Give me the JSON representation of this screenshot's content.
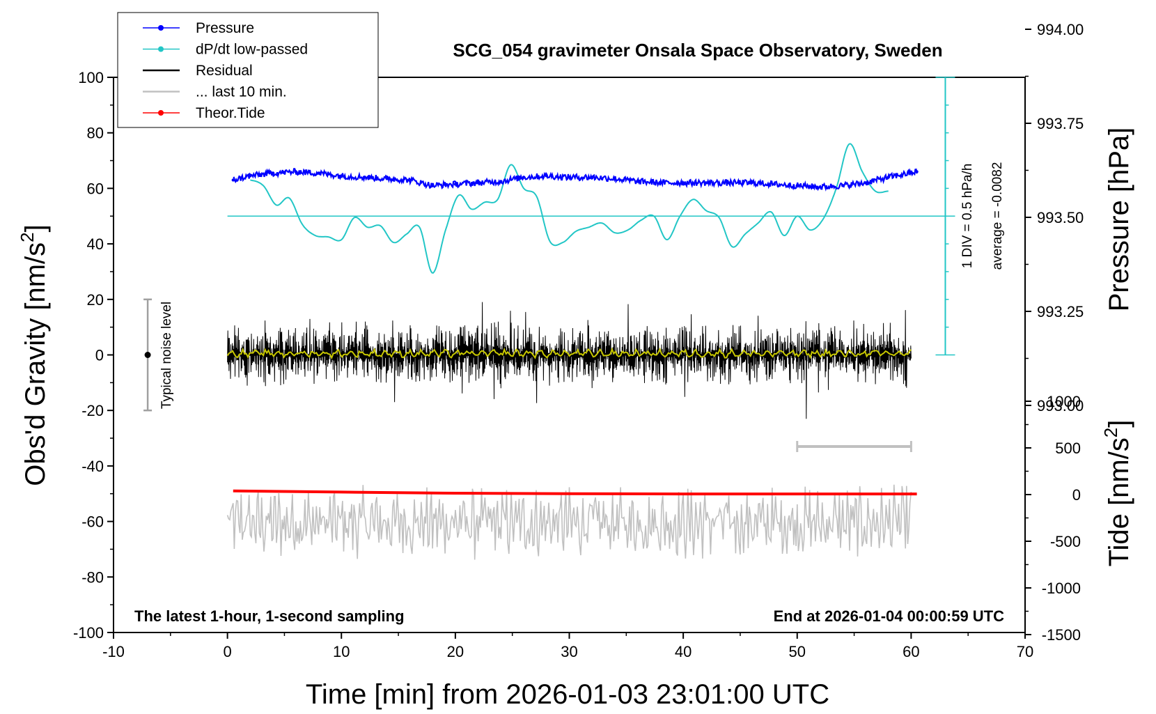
{
  "chart_data": {
    "type": "line",
    "title": "SCG_054 gravimeter Onsala Space Observatory, Sweden",
    "xlabel": "Time [min] from 2026-01-03 23:01:00 UTC",
    "ylabel_left": "Obs'd Gravity [nm/s",
    "ylabel_left_sup": "2",
    "ylabel_left_tail": "]",
    "ylabel_right_pressure": "Pressure [hPa]",
    "ylabel_right_tide": "Tide [nm/s",
    "ylabel_right_tide_sup": "2",
    "ylabel_right_tide_tail": "]",
    "xlim": [
      -10,
      70
    ],
    "ylim_left": [
      -100,
      100
    ],
    "x_ticks": [
      "-10",
      "0",
      "10",
      "20",
      "30",
      "40",
      "50",
      "60",
      "70"
    ],
    "y_ticks_left": [
      "100",
      "80",
      "60",
      "40",
      "20",
      "0",
      "-20",
      "-40",
      "-60",
      "-80",
      "-100"
    ],
    "pressure_axis": {
      "ticks": [
        "994.00",
        "993.75",
        "993.50",
        "993.25",
        "993.00"
      ],
      "values": [
        994.0,
        993.75,
        993.5,
        993.25,
        993.0
      ]
    },
    "tide_axis": {
      "ticks": [
        "1000",
        "500",
        "0",
        "-500",
        "-1000",
        "-1500"
      ],
      "values": [
        1000,
        500,
        0,
        -500,
        -1000,
        -1500
      ]
    },
    "legend": {
      "placement": "top-left",
      "items": [
        {
          "label": "Pressure",
          "color": "#0000ff",
          "marker": true
        },
        {
          "label": "dP/dt low-passed",
          "color": "#22c6c6",
          "marker": true
        },
        {
          "label": "Residual",
          "color": "#000000",
          "marker": false
        },
        {
          "label": "... last 10 min.",
          "color": "#c0c0c0",
          "marker": false
        },
        {
          "label": "Theor.Tide",
          "color": "#ff0000",
          "marker": true
        }
      ]
    },
    "annotations": {
      "noise_level": "Typical noise level",
      "dpdt_scale": "1 DIV = 0.5 hPa/h",
      "dpdt_average": "average = -0.0082",
      "bottom_left": "The latest 1-hour, 1-second sampling",
      "bottom_right": "End at 2026-01-04 00:00:59 UTC"
    },
    "series": [
      {
        "name": "Pressure",
        "color": "#0000ff",
        "x": [
          0.5,
          2,
          4,
          6,
          8,
          10,
          12,
          14,
          16,
          18,
          20,
          22,
          24,
          26,
          28,
          30,
          32,
          34,
          36,
          38,
          40,
          42,
          44,
          46,
          48,
          50,
          52,
          54,
          56,
          58,
          60.5
        ],
        "y": [
          63,
          64.5,
          65.5,
          66,
          65.5,
          64.5,
          64,
          63.5,
          63,
          61,
          61.5,
          62,
          62.5,
          64,
          64.5,
          64,
          64,
          63.5,
          62.5,
          62,
          62,
          62,
          62,
          62,
          61.5,
          61,
          60.5,
          61,
          62,
          64,
          66
        ]
      },
      {
        "name": "dP/dt low-passed",
        "color": "#22c6c6",
        "x": [
          2,
          2.5,
          3.5,
          4.5,
          5.5,
          6.5,
          7.5,
          8.5,
          9.8,
          11,
          12,
          13.5,
          14.7,
          15.8,
          17.2,
          18.5,
          19.8,
          21,
          22,
          23,
          24.5,
          25.8,
          27,
          28.5,
          29.5,
          31,
          32,
          33.5,
          34.5,
          35.5,
          36.5,
          37.5,
          38.5,
          40,
          41,
          42.5,
          43.5,
          44.8,
          46,
          47,
          48,
          48.8,
          50,
          51,
          52,
          53.5,
          54.8,
          56,
          57,
          58
        ],
        "y": [
          63,
          61,
          54,
          56.5,
          47,
          43,
          42.5,
          41.5,
          49.5,
          46,
          46.5,
          40.5,
          43.5,
          46,
          29.5,
          45,
          57.5,
          52.5,
          55,
          56,
          68.5,
          60,
          57,
          41,
          40.5,
          44.5,
          46,
          47.5,
          44,
          45,
          48.5,
          50,
          41.5,
          50,
          56,
          52,
          49.5,
          39,
          43.5,
          47.5,
          51.5,
          43,
          50,
          45,
          49,
          60,
          76,
          66,
          59,
          59
        ]
      },
      {
        "name": "Residual",
        "color": "#000000",
        "x_range": [
          0,
          60
        ],
        "amplitude_envelope": [
          -23,
          22
        ],
        "typical_amplitude": 8
      },
      {
        "name": "... last 10 min.",
        "color": "#c0c0c0",
        "x_range": [
          0,
          60
        ],
        "baseline": -60.5,
        "amplitude_envelope": [
          -79,
          -43
        ]
      },
      {
        "name": "Theor.Tide",
        "color": "#ff0000",
        "x": [
          0.5,
          10,
          20,
          30,
          40,
          50,
          60.5
        ],
        "y": [
          -49,
          -49.4,
          -49.8,
          -50,
          -50.1,
          -50.1,
          -50.1
        ]
      },
      {
        "name": "low-pass residual",
        "color": "#c8c800",
        "x_range": [
          0,
          60
        ],
        "baseline": 0.5
      }
    ]
  }
}
